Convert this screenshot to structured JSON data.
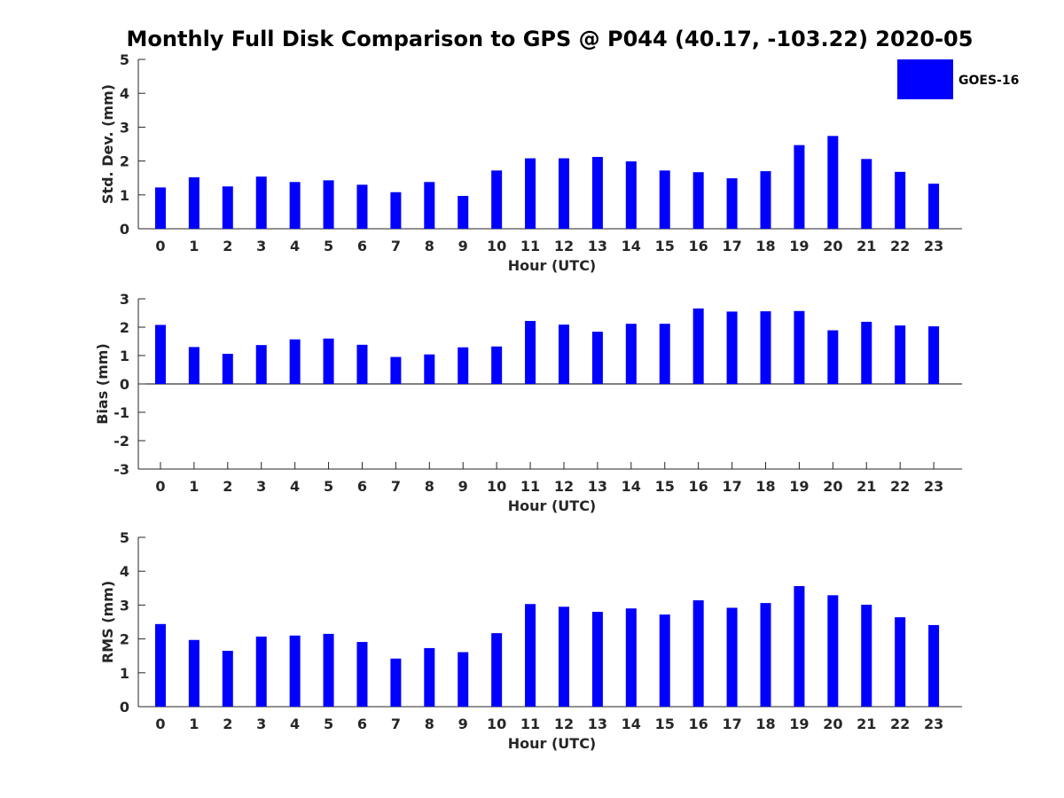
{
  "title": "Monthly Full Disk Comparison to GPS @ P044 (40.17, -103.22) 2020-05",
  "bar_color": "#0000ff",
  "axis_color": "#262626",
  "legend": {
    "label": "GOES-16",
    "placement": "top-right"
  },
  "chart_data": [
    {
      "type": "bar",
      "title": "",
      "xlabel": "Hour (UTC)",
      "ylabel": "Std. Dev. (mm)",
      "ylim": [
        0,
        5
      ],
      "yticks": [
        0,
        1,
        2,
        3,
        4,
        5
      ],
      "categories": [
        "0",
        "1",
        "2",
        "3",
        "4",
        "5",
        "6",
        "7",
        "8",
        "9",
        "10",
        "11",
        "12",
        "13",
        "14",
        "15",
        "16",
        "17",
        "18",
        "19",
        "20",
        "21",
        "22",
        "23"
      ],
      "series": [
        {
          "name": "GOES-16",
          "values": [
            1.22,
            1.52,
            1.25,
            1.54,
            1.38,
            1.43,
            1.3,
            1.08,
            1.38,
            0.97,
            1.72,
            2.08,
            2.08,
            2.12,
            1.99,
            1.72,
            1.67,
            1.49,
            1.7,
            2.47,
            2.74,
            2.06,
            1.68,
            1.33
          ]
        }
      ]
    },
    {
      "type": "bar",
      "title": "",
      "xlabel": "Hour (UTC)",
      "ylabel": "Bias (mm)",
      "ylim": [
        -3,
        3
      ],
      "yticks": [
        -3,
        -2,
        -1,
        0,
        1,
        2,
        3
      ],
      "categories": [
        "0",
        "1",
        "2",
        "3",
        "4",
        "5",
        "6",
        "7",
        "8",
        "9",
        "10",
        "11",
        "12",
        "13",
        "14",
        "15",
        "16",
        "17",
        "18",
        "19",
        "20",
        "21",
        "22",
        "23"
      ],
      "series": [
        {
          "name": "GOES-16",
          "values": [
            2.08,
            1.3,
            1.06,
            1.37,
            1.57,
            1.6,
            1.38,
            0.95,
            1.04,
            1.29,
            1.32,
            2.22,
            2.09,
            1.84,
            2.12,
            2.12,
            2.66,
            2.55,
            2.56,
            2.57,
            1.89,
            2.19,
            2.06,
            2.03
          ]
        }
      ]
    },
    {
      "type": "bar",
      "title": "",
      "xlabel": "Hour (UTC)",
      "ylabel": "RMS (mm)",
      "ylim": [
        0,
        5
      ],
      "yticks": [
        0,
        1,
        2,
        3,
        4,
        5
      ],
      "categories": [
        "0",
        "1",
        "2",
        "3",
        "4",
        "5",
        "6",
        "7",
        "8",
        "9",
        "10",
        "11",
        "12",
        "13",
        "14",
        "15",
        "16",
        "17",
        "18",
        "19",
        "20",
        "21",
        "22",
        "23"
      ],
      "series": [
        {
          "name": "GOES-16",
          "values": [
            2.44,
            1.97,
            1.65,
            2.07,
            2.1,
            2.15,
            1.91,
            1.42,
            1.73,
            1.61,
            2.17,
            3.03,
            2.95,
            2.8,
            2.9,
            2.72,
            3.14,
            2.92,
            3.06,
            3.56,
            3.29,
            3.01,
            2.64,
            2.41
          ]
        }
      ]
    }
  ]
}
